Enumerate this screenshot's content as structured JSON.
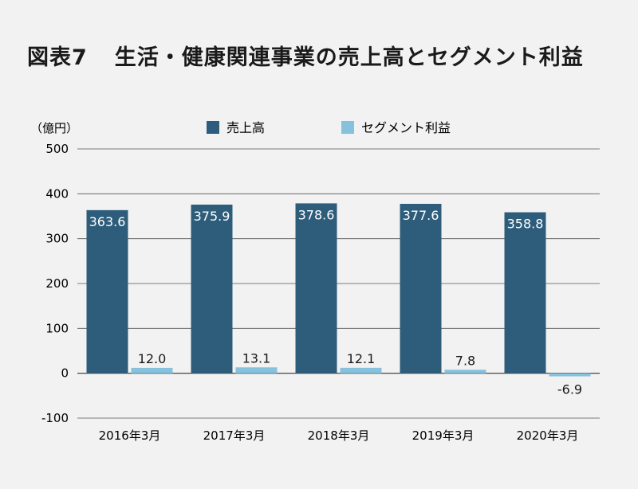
{
  "title_prefix": "図表7",
  "title_main": "生活・健康関連事業の売上高とセグメント利益",
  "chart_data": {
    "type": "bar",
    "unit_label": "（億円）",
    "categories": [
      "2016年3月",
      "2017年3月",
      "2018年3月",
      "2019年3月",
      "2020年3月"
    ],
    "series": [
      {
        "name": "売上高",
        "color": "#2e5d7b",
        "values": [
          363.6,
          375.9,
          378.6,
          377.6,
          358.8
        ],
        "labels": [
          "363.6",
          "375.9",
          "378.6",
          "377.6",
          "358.8"
        ]
      },
      {
        "name": "セグメント利益",
        "color": "#86c1de",
        "values": [
          12.0,
          13.1,
          12.1,
          7.8,
          -6.9
        ],
        "labels": [
          "12.0",
          "13.1",
          "12.1",
          "7.8",
          "-6.9"
        ]
      }
    ],
    "yticks": [
      500,
      400,
      300,
      200,
      100,
      0,
      -100
    ],
    "ylim": [
      -100,
      500
    ],
    "grid": true,
    "legend_position": "top"
  }
}
